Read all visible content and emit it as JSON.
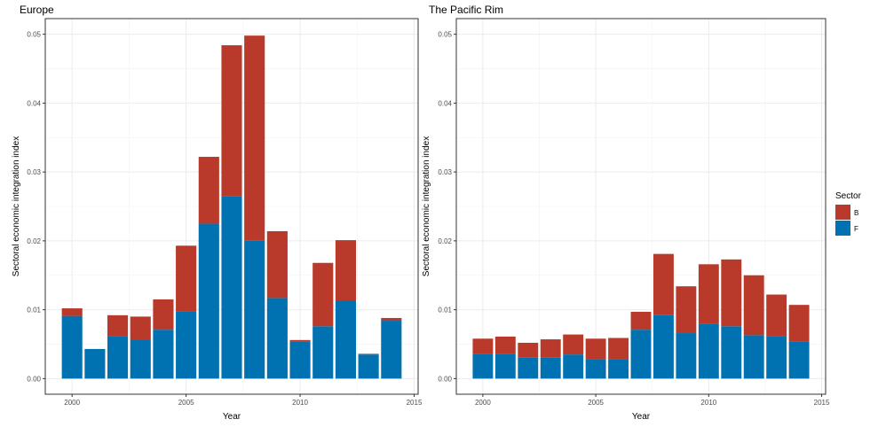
{
  "chart_data": [
    {
      "type": "bar",
      "stacked": true,
      "title": "Europe",
      "xlabel": "Year",
      "ylabel": "Sectoral economic integration index",
      "xlim": [
        1999.5,
        2014.5
      ],
      "ylim": [
        0,
        0.05
      ],
      "x_ticks": [
        "2000",
        "2005",
        "2010",
        "2015"
      ],
      "y_ticks": [
        "0.00",
        "0.01",
        "0.02",
        "0.03",
        "0.04",
        "0.05"
      ],
      "grid": true,
      "categories": [
        2000,
        2001,
        2002,
        2003,
        2004,
        2005,
        2006,
        2007,
        2008,
        2009,
        2010,
        2011,
        2012,
        2013,
        2014
      ],
      "series": [
        {
          "name": "F",
          "color": "#0072b2",
          "values": [
            0.0091,
            0.0043,
            0.0061,
            0.0057,
            0.0071,
            0.0097,
            0.0225,
            0.0265,
            0.02,
            0.0117,
            0.0054,
            0.0076,
            0.0113,
            0.0035,
            0.0084
          ]
        },
        {
          "name": "B",
          "color": "#b93a2a",
          "values": [
            0.0011,
            0.0,
            0.0031,
            0.0033,
            0.0044,
            0.0096,
            0.0097,
            0.0219,
            0.0298,
            0.0097,
            0.0002,
            0.0092,
            0.0088,
            0.0001,
            0.0004
          ]
        }
      ]
    },
    {
      "type": "bar",
      "stacked": true,
      "title": "The Pacific Rim",
      "xlabel": "Year",
      "ylabel": "Sectoral economic integration index",
      "xlim": [
        1999.5,
        2014.5
      ],
      "ylim": [
        0,
        0.05
      ],
      "x_ticks": [
        "2000",
        "2005",
        "2010",
        "2015"
      ],
      "y_ticks": [
        "0.00",
        "0.01",
        "0.02",
        "0.03",
        "0.04",
        "0.05"
      ],
      "grid": true,
      "categories": [
        2000,
        2001,
        2002,
        2003,
        2004,
        2005,
        2006,
        2007,
        2008,
        2009,
        2010,
        2011,
        2012,
        2013,
        2014
      ],
      "series": [
        {
          "name": "F",
          "color": "#0072b2",
          "values": [
            0.0036,
            0.0036,
            0.0031,
            0.0031,
            0.0035,
            0.0028,
            0.0028,
            0.0071,
            0.0092,
            0.0066,
            0.008,
            0.0076,
            0.0063,
            0.0061,
            0.0054
          ]
        },
        {
          "name": "B",
          "color": "#b93a2a",
          "values": [
            0.0022,
            0.0025,
            0.0021,
            0.0026,
            0.0029,
            0.003,
            0.0031,
            0.0026,
            0.0089,
            0.0068,
            0.0086,
            0.0097,
            0.0087,
            0.0061,
            0.0053
          ]
        }
      ]
    }
  ],
  "legend": {
    "title": "Sector",
    "position": "right",
    "items": [
      {
        "label": "B",
        "color": "#b93a2a"
      },
      {
        "label": "F",
        "color": "#0072b2"
      }
    ]
  }
}
